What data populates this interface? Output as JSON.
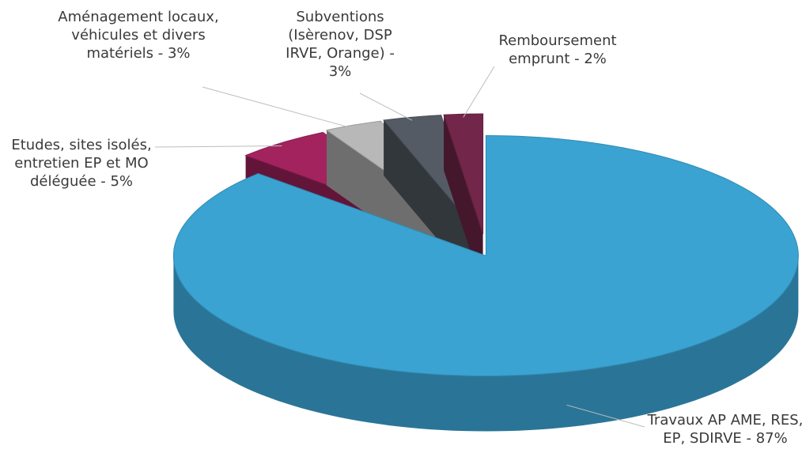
{
  "chart_data": {
    "type": "pie3d",
    "categories": [
      "Travaux AP AME, RES, EP, SDIRVE - 87%",
      "Etudes, sites isolés, entretien EP et MO déléguée - 5%",
      "Aménagement locaux, véhicules et divers matériels - 3%",
      "Subventions (Isèrenov, DSP IRVE, Orange) - 3%",
      "Remboursement emprunt - 2%"
    ],
    "values": [
      87,
      5,
      3,
      3,
      2
    ],
    "colors": [
      "#3aa3d2",
      "#a3235f",
      "#b8b8b8",
      "#545b64",
      "#722649"
    ]
  }
}
